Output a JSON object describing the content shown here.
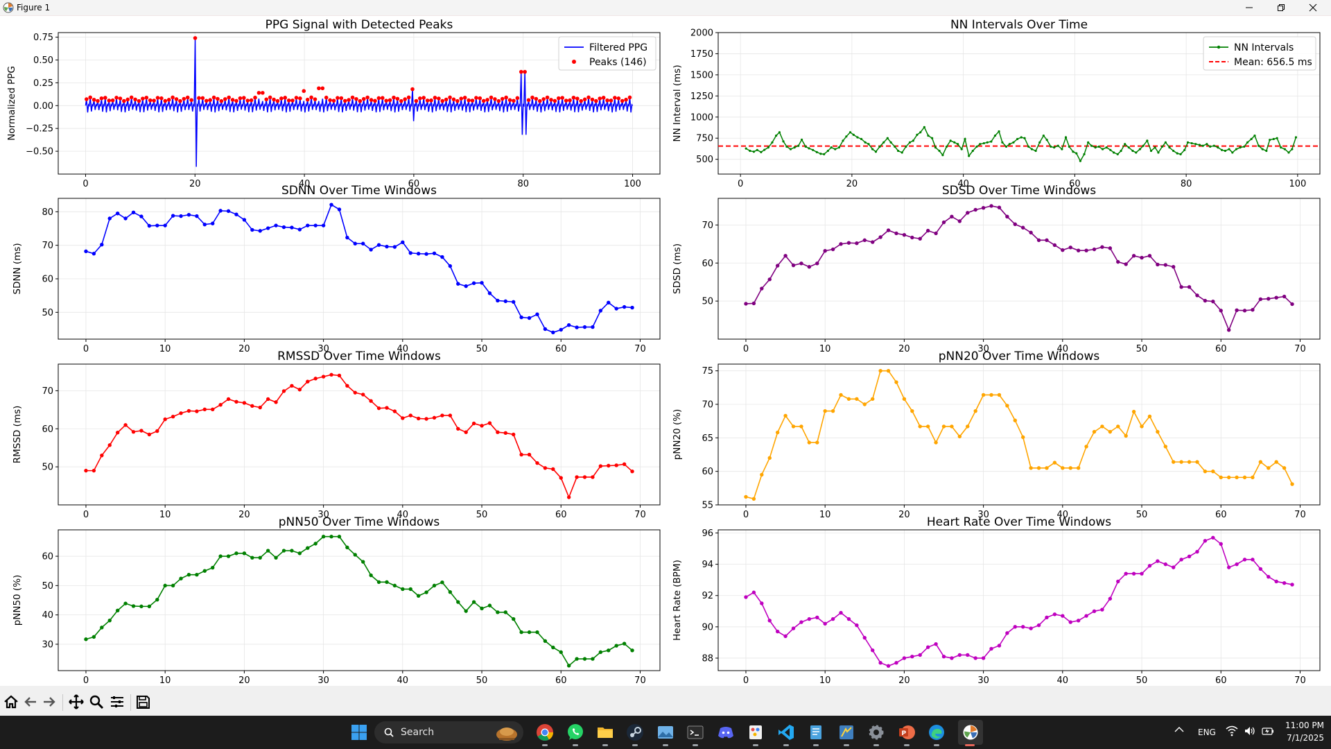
{
  "window": {
    "title": "Figure 1"
  },
  "colors": {
    "ppg": "#0000ff",
    "peaks": "#ff0000",
    "nn": "#008000",
    "mean": "#ff0000",
    "sdnn": "#0000ff",
    "sdsd": "#800080",
    "rmssd": "#ff0000",
    "pnn20": "#ffa500",
    "pnn50": "#008000",
    "hr": "#bf00bf"
  },
  "toolbar": {
    "buttons": [
      "home-icon",
      "back-icon",
      "forward-icon",
      "pan-icon",
      "zoom-icon",
      "configure-icon",
      "save-icon"
    ]
  },
  "taskbar": {
    "search_label": "Search",
    "lang": "ENG",
    "time": "11:00 PM",
    "date": "7/1/2025",
    "apps": [
      "start-icon",
      "chrome-icon",
      "whatsapp-icon",
      "file-explorer-icon",
      "steam-icon",
      "photos-icon",
      "terminal-icon",
      "discord-icon",
      "paint-icon",
      "vscode-icon",
      "notepad-icon",
      "python-icon",
      "settings-icon",
      "powerpoint-icon",
      "edge-icon",
      "matplotlib-icon"
    ]
  },
  "chart_data": [
    {
      "id": "ppg",
      "type": "line",
      "title": "PPG Signal with Detected Peaks",
      "xlabel": "",
      "ylabel": "Normalized PPG",
      "xlim": [
        -5,
        105
      ],
      "ylim": [
        -0.75,
        0.8
      ],
      "xticks": [
        0,
        20,
        40,
        60,
        80,
        100
      ],
      "yticks": [
        -0.5,
        -0.25,
        0.0,
        0.25,
        0.5,
        0.75
      ],
      "ytick_labels": [
        "−0.50",
        "−0.25",
        "0.00",
        "0.25",
        "0.50",
        "0.75"
      ],
      "grid": true,
      "legend": {
        "position": "upper-right",
        "entries": [
          {
            "label": "Filtered PPG",
            "kind": "line"
          },
          {
            "label": "Peaks (146)",
            "kind": "marker"
          }
        ]
      },
      "signal": {
        "name": "Filtered PPG",
        "x_range": [
          0,
          100
        ],
        "beat_count": 146,
        "baseline_peak": 0.07,
        "baseline_trough": -0.06,
        "spikes": [
          {
            "x": 20,
            "peak": 0.74,
            "trough": -0.67
          },
          {
            "x": 60,
            "peak": 0.18,
            "trough": -0.17
          },
          {
            "x": 80,
            "peak": 0.37,
            "trough": -0.32
          }
        ]
      },
      "peaks": {
        "name": "Peaks (146)",
        "count": 146,
        "typical_y": 0.07,
        "tall": [
          {
            "x": 20.0,
            "y": 0.74
          },
          {
            "x": 80.0,
            "y": 0.37
          },
          {
            "x": 60.0,
            "y": 0.18
          },
          {
            "x": 43.0,
            "y": 0.19
          },
          {
            "x": 40.0,
            "y": 0.16
          },
          {
            "x": 32.0,
            "y": 0.14
          }
        ]
      }
    },
    {
      "id": "nn",
      "type": "line",
      "title": "NN Intervals Over Time",
      "xlabel": "",
      "ylabel": "NN Interval (ms)",
      "xlim": [
        -4,
        104
      ],
      "ylim": [
        325,
        2000
      ],
      "xticks": [
        0,
        20,
        40,
        60,
        80,
        100
      ],
      "yticks": [
        500,
        750,
        1000,
        1250,
        1500,
        1750,
        2000
      ],
      "grid": true,
      "legend": {
        "position": "upper-right",
        "entries": [
          {
            "label": "NN Intervals",
            "kind": "line-marker"
          },
          {
            "label": "Mean: 656.5 ms",
            "kind": "dashed"
          }
        ]
      },
      "mean": 656.5,
      "x": [
        1.0,
        1.7,
        2.4,
        3.0,
        3.7,
        4.3,
        5.0,
        5.7,
        6.4,
        7.0,
        7.7,
        8.3,
        9.0,
        9.7,
        10.4,
        11.0,
        11.7,
        12.3,
        13.0,
        13.7,
        14.4,
        15.0,
        15.7,
        16.3,
        17.0,
        17.7,
        18.4,
        19.0,
        19.7,
        20.3,
        21.0,
        21.7,
        22.4,
        23.0,
        23.7,
        24.3,
        25.0,
        25.7,
        26.4,
        27.0,
        27.7,
        28.3,
        29.0,
        29.7,
        30.4,
        31.0,
        31.7,
        32.3,
        33.0,
        33.7,
        34.4,
        35.0,
        35.7,
        36.3,
        37.0,
        37.7,
        38.4,
        39.0,
        39.7,
        40.3,
        41.0,
        41.7,
        42.4,
        43.0,
        43.7,
        44.3,
        45.0,
        45.7,
        46.4,
        47.0,
        47.7,
        48.3,
        49.0,
        49.7,
        50.4,
        51.0,
        51.7,
        52.3,
        53.0,
        53.7,
        54.4,
        55.0,
        55.7,
        56.3,
        57.0,
        57.7,
        58.4,
        59.0,
        59.7,
        60.3,
        61.0,
        61.7,
        62.4,
        63.0,
        63.7,
        64.3,
        65.0,
        65.7,
        66.4,
        67.0,
        67.7,
        68.3,
        69.0,
        69.7,
        70.4,
        71.0,
        71.7,
        72.3,
        73.0,
        73.7,
        74.4,
        75.0,
        75.7,
        76.3,
        77.0,
        77.7,
        78.4,
        79.0,
        79.7,
        80.3,
        81.0,
        81.7,
        82.4,
        83.0,
        83.7,
        84.3,
        85.0,
        85.7,
        86.4,
        87.0,
        87.7,
        88.3,
        89.0,
        89.7,
        90.4,
        91.0,
        91.7,
        92.3,
        93.0,
        93.7,
        94.4,
        95.0,
        95.7,
        96.3,
        97.0,
        97.7,
        98.4,
        99.0,
        99.7
      ],
      "y": [
        628,
        600,
        590,
        610,
        585,
        612,
        640,
        700,
        780,
        820,
        712,
        650,
        620,
        640,
        660,
        732,
        650,
        630,
        610,
        585,
        565,
        560,
        600,
        640,
        620,
        640,
        720,
        770,
        820,
        790,
        760,
        740,
        700,
        680,
        620,
        590,
        650,
        700,
        750,
        700,
        650,
        600,
        580,
        650,
        700,
        720,
        790,
        820,
        880,
        780,
        750,
        640,
        600,
        550,
        650,
        720,
        700,
        680,
        620,
        740,
        540,
        600,
        650,
        680,
        690,
        700,
        710,
        780,
        830,
        700,
        650,
        680,
        700,
        740,
        760,
        750,
        650,
        620,
        600,
        700,
        780,
        730,
        650,
        640,
        660,
        620,
        760,
        650,
        590,
        570,
        480,
        560,
        700,
        660,
        640,
        650,
        620,
        640,
        610,
        580,
        560,
        600,
        680,
        640,
        600,
        580,
        620,
        660,
        720,
        600,
        640,
        580,
        650,
        700,
        640,
        600,
        570,
        560,
        610,
        700,
        690,
        680,
        670,
        660,
        680,
        650,
        660,
        640,
        610,
        600,
        620,
        580,
        620,
        640,
        650,
        700,
        740,
        780,
        660,
        620,
        600,
        730,
        740,
        750,
        640,
        620,
        580,
        620,
        760
      ]
    },
    {
      "id": "sdnn",
      "type": "line",
      "title": "SDNN Over Time Windows",
      "xlabel": "",
      "ylabel": "SDNN (ms)",
      "xlim": [
        -3.5,
        72.5
      ],
      "ylim": [
        42,
        84
      ],
      "xticks": [
        0,
        10,
        20,
        30,
        40,
        50,
        60,
        70
      ],
      "yticks": [
        50,
        60,
        70,
        80
      ],
      "grid": true,
      "values": [
        68.2,
        67.5,
        70.2,
        78.0,
        79.5,
        78.0,
        79.8,
        78.6,
        75.8,
        75.9,
        75.9,
        78.8,
        78.7,
        79.1,
        78.7,
        76.2,
        76.5,
        80.3,
        80.2,
        79.2,
        77.6,
        74.6,
        74.3,
        75.1,
        75.9,
        75.4,
        75.3,
        74.7,
        75.9,
        75.9,
        75.9,
        82.1,
        80.7,
        72.3,
        70.5,
        70.5,
        68.7,
        70.1,
        69.6,
        69.5,
        70.9,
        67.7,
        67.5,
        67.4,
        67.6,
        66.5,
        63.8,
        58.5,
        57.8,
        58.7,
        58.8,
        55.7,
        53.5,
        53.3,
        53.1,
        48.5,
        48.3,
        49.4,
        45.0,
        44.0,
        44.8,
        46.2,
        45.5,
        45.6,
        45.6,
        50.5,
        52.9,
        51.1,
        51.6,
        51.4
      ]
    },
    {
      "id": "sdsd",
      "type": "line",
      "title": "SDSD Over Time Windows",
      "xlabel": "",
      "ylabel": "SDSD (ms)",
      "xlim": [
        -3.5,
        72.5
      ],
      "ylim": [
        40,
        77
      ],
      "xticks": [
        0,
        10,
        20,
        30,
        40,
        50,
        60,
        70
      ],
      "yticks": [
        50,
        60,
        70
      ],
      "grid": true,
      "values": [
        49.3,
        49.4,
        53.3,
        55.7,
        59.3,
        61.9,
        59.4,
        59.9,
        59.0,
        59.9,
        63.2,
        63.6,
        65.0,
        65.3,
        65.2,
        66.0,
        65.5,
        66.8,
        68.6,
        67.8,
        67.4,
        66.7,
        66.4,
        68.5,
        67.8,
        70.7,
        72.2,
        71.0,
        73.2,
        74.0,
        74.5,
        75.0,
        74.6,
        72.2,
        70.2,
        69.3,
        68.0,
        66.0,
        66.0,
        64.7,
        63.4,
        64.1,
        63.3,
        63.3,
        63.6,
        64.2,
        63.9,
        60.3,
        59.7,
        61.9,
        61.4,
        61.9,
        59.6,
        59.5,
        59.0,
        53.7,
        53.7,
        51.5,
        50.1,
        49.9,
        47.5,
        42.4,
        47.6,
        47.5,
        47.7,
        50.5,
        50.6,
        50.9,
        51.2,
        49.2
      ]
    },
    {
      "id": "rmssd",
      "type": "line",
      "title": "RMSSD Over Time Windows",
      "xlabel": "",
      "ylabel": "RMSSD (ms)",
      "xlim": [
        -3.5,
        72.5
      ],
      "ylim": [
        40,
        77
      ],
      "xticks": [
        0,
        10,
        20,
        30,
        40,
        50,
        60,
        70
      ],
      "yticks": [
        50,
        60,
        70
      ],
      "grid": true,
      "values": [
        49.0,
        49.0,
        53.0,
        55.7,
        59.0,
        61.0,
        59.2,
        59.5,
        58.5,
        59.4,
        62.5,
        63.2,
        64.1,
        64.7,
        64.6,
        65.1,
        65.1,
        66.3,
        67.8,
        67.1,
        66.8,
        66.0,
        65.6,
        67.8,
        67.0,
        69.9,
        71.3,
        70.3,
        72.4,
        73.2,
        73.7,
        74.2,
        74.0,
        71.3,
        69.5,
        69.0,
        67.3,
        65.4,
        65.5,
        64.6,
        62.8,
        63.5,
        62.7,
        62.6,
        62.9,
        63.5,
        63.5,
        60.0,
        59.1,
        61.4,
        60.8,
        61.5,
        59.1,
        58.9,
        58.5,
        53.2,
        53.2,
        51.0,
        49.7,
        49.4,
        47.1,
        42.0,
        47.3,
        47.3,
        47.3,
        50.2,
        50.3,
        50.4,
        50.7,
        48.8
      ]
    },
    {
      "id": "pnn20",
      "type": "line",
      "title": "pNN20 Over Time Windows",
      "xlabel": "",
      "ylabel": "pNN20 (%)",
      "xlim": [
        -3.5,
        72.5
      ],
      "ylim": [
        55,
        76
      ],
      "xticks": [
        0,
        10,
        20,
        30,
        40,
        50,
        60,
        70
      ],
      "yticks": [
        55,
        60,
        65,
        70,
        75
      ],
      "grid": true,
      "values": [
        56.2,
        55.9,
        59.5,
        62.0,
        65.8,
        68.3,
        66.7,
        66.7,
        64.3,
        64.3,
        69.0,
        69.0,
        71.4,
        70.8,
        70.8,
        70.0,
        70.8,
        75.0,
        75.0,
        73.3,
        70.8,
        69.0,
        66.7,
        66.7,
        64.3,
        66.7,
        66.7,
        65.2,
        66.7,
        69.0,
        71.4,
        71.4,
        71.4,
        69.8,
        67.6,
        65.1,
        60.5,
        60.5,
        60.5,
        61.3,
        60.5,
        60.5,
        60.5,
        63.7,
        65.9,
        66.7,
        65.9,
        66.7,
        65.3,
        68.9,
        66.7,
        68.2,
        65.9,
        63.7,
        61.4,
        61.4,
        61.4,
        61.4,
        60.0,
        60.0,
        59.1,
        59.1,
        59.1,
        59.1,
        59.1,
        61.4,
        60.5,
        61.4,
        60.5,
        58.1
      ]
    },
    {
      "id": "pnn50",
      "type": "line",
      "title": "pNN50 Over Time Windows",
      "xlabel": "",
      "ylabel": "pNN50 (%)",
      "xlim": [
        -3.5,
        72.5
      ],
      "ylim": [
        21,
        69
      ],
      "xticks": [
        0,
        10,
        20,
        30,
        40,
        50,
        60,
        70
      ],
      "yticks": [
        30,
        40,
        50,
        60
      ],
      "grid": true,
      "values": [
        31.7,
        32.5,
        35.7,
        38.1,
        41.5,
        43.9,
        43.0,
        42.9,
        42.9,
        45.2,
        50.0,
        50.0,
        52.4,
        53.7,
        53.7,
        55.0,
        56.1,
        60.0,
        60.0,
        61.0,
        61.0,
        59.5,
        59.5,
        61.9,
        59.5,
        61.9,
        61.9,
        61.0,
        62.8,
        64.3,
        66.7,
        66.7,
        66.7,
        63.0,
        60.5,
        58.1,
        53.5,
        51.2,
        51.2,
        50.0,
        48.8,
        48.8,
        46.5,
        47.7,
        50.0,
        51.1,
        47.8,
        44.4,
        41.3,
        44.4,
        42.2,
        43.2,
        40.9,
        40.9,
        38.6,
        34.1,
        34.1,
        34.1,
        31.1,
        28.9,
        27.3,
        22.7,
        25.0,
        25.0,
        25.0,
        27.3,
        27.9,
        29.5,
        30.2,
        27.9
      ]
    },
    {
      "id": "hr",
      "type": "line",
      "title": "Heart Rate Over Time Windows",
      "xlabel": "",
      "ylabel": "Heart Rate (BPM)",
      "xlim": [
        -3.5,
        72.5
      ],
      "ylim": [
        87.2,
        96.2
      ],
      "xticks": [
        0,
        10,
        20,
        30,
        40,
        50,
        60,
        70
      ],
      "yticks": [
        88,
        90,
        92,
        94,
        96
      ],
      "grid": true,
      "values": [
        91.9,
        92.2,
        91.5,
        90.4,
        89.7,
        89.4,
        89.9,
        90.3,
        90.5,
        90.6,
        90.2,
        90.5,
        90.9,
        90.5,
        90.1,
        89.3,
        88.5,
        87.7,
        87.5,
        87.7,
        88.0,
        88.1,
        88.2,
        88.7,
        88.9,
        88.1,
        88.0,
        88.2,
        88.2,
        88.0,
        88.0,
        88.6,
        88.8,
        89.6,
        90.0,
        90.0,
        89.9,
        90.1,
        90.6,
        90.8,
        90.7,
        90.3,
        90.4,
        90.7,
        91.0,
        91.1,
        91.8,
        92.9,
        93.4,
        93.4,
        93.4,
        93.9,
        94.2,
        94.0,
        93.8,
        94.3,
        94.5,
        94.8,
        95.5,
        95.7,
        95.3,
        93.8,
        94.0,
        94.3,
        94.3,
        93.7,
        93.2,
        92.9,
        92.8,
        92.7
      ]
    }
  ]
}
